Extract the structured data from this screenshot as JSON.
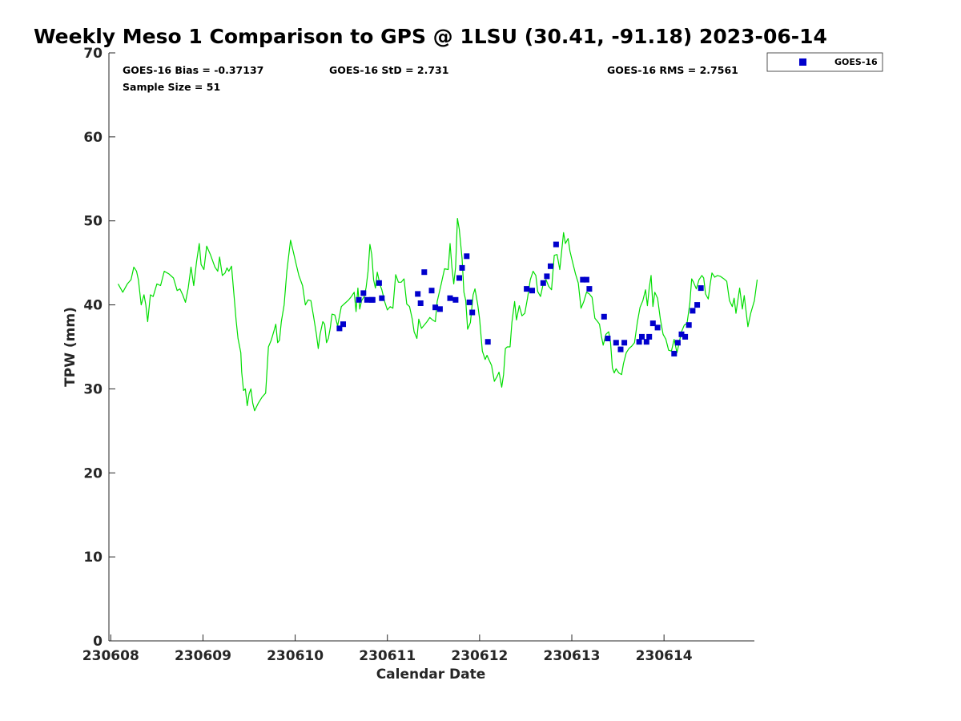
{
  "chart_data": {
    "type": "line",
    "title": "Weekly Meso 1 Comparison to GPS @ 1LSU (30.41, -91.18) 2023-06-14",
    "xlabel": "Calendar Date",
    "ylabel": "TPW (mm)",
    "xlim": [
      "230608",
      "230615"
    ],
    "ylim": [
      0,
      70
    ],
    "x_ticks": [
      "230608",
      "230609",
      "230610",
      "230611",
      "230612",
      "230613",
      "230614"
    ],
    "y_ticks": [
      0,
      10,
      20,
      30,
      40,
      50,
      60,
      70
    ],
    "grid": false,
    "stats": {
      "bias": "GOES-16 Bias = -0.37137",
      "std": "GOES-16 StD = 2.731",
      "rms": "GOES-16 RMS = 2.7561",
      "sample": "Sample Size = 51"
    },
    "legend": {
      "position": "outside-top-right",
      "entries": [
        "GOES-16"
      ]
    },
    "colors": {
      "gps_line": "#00dd00",
      "goes16": "#0000cc"
    },
    "series": [
      {
        "type": "line",
        "color": "#00dd00",
        "points": [
          [
            0.1,
            42.5
          ],
          [
            0.15,
            41.5
          ],
          [
            0.2,
            42.5
          ],
          [
            0.24,
            43
          ],
          [
            0.27,
            44.5
          ],
          [
            0.3,
            44
          ],
          [
            0.32,
            43
          ],
          [
            0.35,
            40
          ],
          [
            0.38,
            41.2
          ],
          [
            0.4,
            40
          ],
          [
            0.42,
            38
          ],
          [
            0.45,
            41.2
          ],
          [
            0.48,
            41
          ],
          [
            0.52,
            42.5
          ],
          [
            0.56,
            42.3
          ],
          [
            0.6,
            44
          ],
          [
            0.65,
            43.7
          ],
          [
            0.7,
            43.2
          ],
          [
            0.74,
            41.7
          ],
          [
            0.77,
            41.9
          ],
          [
            0.8,
            41.2
          ],
          [
            0.83,
            40.3
          ],
          [
            0.86,
            42
          ],
          [
            0.89,
            44.5
          ],
          [
            0.92,
            42.3
          ],
          [
            0.95,
            45.1
          ],
          [
            0.98,
            47.3
          ],
          [
            1.0,
            44.8
          ],
          [
            1.03,
            44.2
          ],
          [
            1.06,
            47
          ],
          [
            1.1,
            46
          ],
          [
            1.15,
            44.5
          ],
          [
            1.18,
            44
          ],
          [
            1.2,
            45.7
          ],
          [
            1.23,
            43.5
          ],
          [
            1.26,
            43.8
          ],
          [
            1.28,
            44.4
          ],
          [
            1.3,
            44
          ],
          [
            1.33,
            44.6
          ],
          [
            1.36,
            40.7
          ],
          [
            1.38,
            38.1
          ],
          [
            1.4,
            36
          ],
          [
            1.43,
            34.3
          ],
          [
            1.44,
            32
          ],
          [
            1.46,
            29.8
          ],
          [
            1.48,
            30
          ],
          [
            1.5,
            28
          ],
          [
            1.52,
            29.4
          ],
          [
            1.54,
            30
          ],
          [
            1.56,
            28.3
          ],
          [
            1.58,
            27.4
          ],
          [
            1.62,
            28.3
          ],
          [
            1.66,
            29
          ],
          [
            1.7,
            29.5
          ],
          [
            1.73,
            35
          ],
          [
            1.76,
            35.8
          ],
          [
            1.79,
            36.9
          ],
          [
            1.81,
            37.7
          ],
          [
            1.83,
            35.5
          ],
          [
            1.85,
            35.8
          ],
          [
            1.87,
            38
          ],
          [
            1.9,
            40
          ],
          [
            1.93,
            44
          ],
          [
            1.97,
            47.7
          ],
          [
            2.0,
            46.3
          ],
          [
            2.03,
            44.9
          ],
          [
            2.06,
            43.5
          ],
          [
            2.1,
            42.3
          ],
          [
            2.13,
            40
          ],
          [
            2.16,
            40.6
          ],
          [
            2.19,
            40.5
          ],
          [
            2.22,
            38.6
          ],
          [
            2.25,
            36.5
          ],
          [
            2.27,
            34.8
          ],
          [
            2.29,
            36.5
          ],
          [
            2.32,
            38
          ],
          [
            2.34,
            37.7
          ],
          [
            2.36,
            35.5
          ],
          [
            2.38,
            36
          ],
          [
            2.4,
            37.2
          ],
          [
            2.42,
            38.9
          ],
          [
            2.45,
            38.8
          ],
          [
            2.48,
            37.5
          ],
          [
            2.52,
            39.8
          ],
          [
            2.56,
            40.2
          ],
          [
            2.6,
            40.6
          ],
          [
            2.63,
            41
          ],
          [
            2.66,
            41.5
          ],
          [
            2.68,
            39.2
          ],
          [
            2.7,
            42
          ],
          [
            2.72,
            39.5
          ],
          [
            2.74,
            40.5
          ],
          [
            2.77,
            41
          ],
          [
            2.79,
            42.1
          ],
          [
            2.81,
            44
          ],
          [
            2.83,
            47.2
          ],
          [
            2.85,
            46
          ],
          [
            2.87,
            43
          ],
          [
            2.89,
            42
          ],
          [
            2.91,
            43.9
          ],
          [
            2.94,
            42.4
          ],
          [
            2.96,
            41.8
          ],
          [
            2.99,
            40.4
          ],
          [
            3.02,
            39.4
          ],
          [
            3.05,
            39.8
          ],
          [
            3.08,
            39.6
          ],
          [
            3.11,
            43.6
          ],
          [
            3.14,
            42.7
          ],
          [
            3.17,
            42.7
          ],
          [
            3.2,
            43.1
          ],
          [
            3.23,
            40.1
          ],
          [
            3.26,
            39.8
          ],
          [
            3.29,
            38.3
          ],
          [
            3.31,
            36.8
          ],
          [
            3.34,
            36
          ],
          [
            3.36,
            38.3
          ],
          [
            3.39,
            37.2
          ],
          [
            3.42,
            37.6
          ],
          [
            3.45,
            38
          ],
          [
            3.48,
            38.5
          ],
          [
            3.51,
            38.2
          ],
          [
            3.54,
            38
          ],
          [
            3.56,
            40.4
          ],
          [
            3.6,
            42.3
          ],
          [
            3.64,
            44.3
          ],
          [
            3.68,
            44.2
          ],
          [
            3.7,
            47.3
          ],
          [
            3.72,
            44.5
          ],
          [
            3.74,
            42.5
          ],
          [
            3.76,
            44.5
          ],
          [
            3.78,
            50.3
          ],
          [
            3.8,
            49
          ],
          [
            3.83,
            45.5
          ],
          [
            3.85,
            41.5
          ],
          [
            3.87,
            40.5
          ],
          [
            3.89,
            37.1
          ],
          [
            3.92,
            37.9
          ],
          [
            3.95,
            41.2
          ],
          [
            3.97,
            41.9
          ],
          [
            4.0,
            40
          ],
          [
            4.02,
            38.3
          ],
          [
            4.05,
            34.5
          ],
          [
            4.08,
            33.5
          ],
          [
            4.1,
            34
          ],
          [
            4.12,
            33.5
          ],
          [
            4.15,
            32.8
          ],
          [
            4.18,
            30.9
          ],
          [
            4.21,
            31.5
          ],
          [
            4.23,
            32
          ],
          [
            4.26,
            30.2
          ],
          [
            4.28,
            31.7
          ],
          [
            4.3,
            34.8
          ],
          [
            4.32,
            35
          ],
          [
            4.35,
            35
          ],
          [
            4.37,
            37.9
          ],
          [
            4.4,
            40.4
          ],
          [
            4.42,
            38.2
          ],
          [
            4.45,
            39.9
          ],
          [
            4.48,
            38.7
          ],
          [
            4.51,
            39
          ],
          [
            4.54,
            40.8
          ],
          [
            4.57,
            43
          ],
          [
            4.6,
            44
          ],
          [
            4.63,
            43.5
          ],
          [
            4.65,
            41.6
          ],
          [
            4.68,
            41
          ],
          [
            4.71,
            42.5
          ],
          [
            4.74,
            43
          ],
          [
            4.77,
            42.2
          ],
          [
            4.8,
            41.8
          ],
          [
            4.83,
            45.9
          ],
          [
            4.86,
            46
          ],
          [
            4.89,
            44.2
          ],
          [
            4.93,
            48.6
          ],
          [
            4.95,
            47.3
          ],
          [
            4.98,
            47.9
          ],
          [
            5.0,
            46.4
          ],
          [
            5.03,
            45
          ],
          [
            5.06,
            43.7
          ],
          [
            5.09,
            42.6
          ],
          [
            5.12,
            39.6
          ],
          [
            5.15,
            40.4
          ],
          [
            5.18,
            41.5
          ],
          [
            5.21,
            41.3
          ],
          [
            5.24,
            40.9
          ],
          [
            5.27,
            38.4
          ],
          [
            5.3,
            38
          ],
          [
            5.32,
            37.7
          ],
          [
            5.34,
            36.3
          ],
          [
            5.36,
            35.2
          ],
          [
            5.39,
            36.5
          ],
          [
            5.42,
            36.8
          ],
          [
            5.44,
            35.5
          ],
          [
            5.46,
            32.5
          ],
          [
            5.48,
            31.9
          ],
          [
            5.5,
            32.4
          ],
          [
            5.53,
            31.9
          ],
          [
            5.56,
            31.7
          ],
          [
            5.58,
            33
          ],
          [
            5.61,
            34.3
          ],
          [
            5.64,
            34.8
          ],
          [
            5.67,
            35.1
          ],
          [
            5.7,
            35.5
          ],
          [
            5.73,
            37.9
          ],
          [
            5.76,
            39.7
          ],
          [
            5.79,
            40.5
          ],
          [
            5.82,
            41.8
          ],
          [
            5.84,
            39.9
          ],
          [
            5.86,
            42
          ],
          [
            5.88,
            43.5
          ],
          [
            5.9,
            39.8
          ],
          [
            5.92,
            41.5
          ],
          [
            5.95,
            40.8
          ],
          [
            5.98,
            38.3
          ],
          [
            6.01,
            36.5
          ],
          [
            6.04,
            35.9
          ],
          [
            6.07,
            34.6
          ],
          [
            6.1,
            34.5
          ],
          [
            6.13,
            35.9
          ],
          [
            6.16,
            34.3
          ],
          [
            6.18,
            35.3
          ],
          [
            6.21,
            36.8
          ],
          [
            6.24,
            37.6
          ],
          [
            6.27,
            37.8
          ],
          [
            6.3,
            40.2
          ],
          [
            6.32,
            43.1
          ],
          [
            6.34,
            42.7
          ],
          [
            6.37,
            41.9
          ],
          [
            6.4,
            43
          ],
          [
            6.43,
            43.5
          ],
          [
            6.45,
            43.2
          ],
          [
            6.47,
            41.3
          ],
          [
            6.5,
            40.7
          ],
          [
            6.52,
            42.4
          ],
          [
            6.54,
            43.8
          ],
          [
            6.57,
            43.3
          ],
          [
            6.6,
            43.5
          ],
          [
            6.63,
            43.4
          ],
          [
            6.67,
            43.1
          ],
          [
            6.7,
            42.8
          ],
          [
            6.73,
            40.5
          ],
          [
            6.76,
            39.8
          ],
          [
            6.78,
            40.8
          ],
          [
            6.8,
            39
          ],
          [
            6.82,
            40.5
          ],
          [
            6.84,
            42
          ],
          [
            6.87,
            39.5
          ],
          [
            6.89,
            41.1
          ],
          [
            6.93,
            37.4
          ],
          [
            6.96,
            39
          ],
          [
            7.0,
            40.5
          ],
          [
            7.03,
            43
          ]
        ]
      },
      {
        "name": "GOES-16",
        "type": "scatter",
        "color": "#0000cc",
        "points": [
          [
            2.5,
            37.2
          ],
          [
            2.54,
            37.7
          ],
          [
            2.71,
            40.6
          ],
          [
            2.76,
            41.4
          ],
          [
            2.8,
            40.6
          ],
          [
            2.85,
            40.6
          ],
          [
            2.86,
            40.6
          ],
          [
            2.93,
            42.6
          ],
          [
            2.96,
            40.8
          ],
          [
            3.35,
            41.3
          ],
          [
            3.38,
            40.2
          ],
          [
            3.42,
            43.9
          ],
          [
            3.5,
            41.7
          ],
          [
            3.54,
            39.7
          ],
          [
            3.59,
            39.5
          ],
          [
            3.7,
            40.8
          ],
          [
            3.76,
            40.6
          ],
          [
            3.8,
            43.2
          ],
          [
            3.83,
            44.4
          ],
          [
            3.88,
            45.8
          ],
          [
            3.91,
            40.3
          ],
          [
            3.94,
            39.1
          ],
          [
            4.11,
            35.6
          ],
          [
            4.53,
            41.9
          ],
          [
            4.59,
            41.7
          ],
          [
            4.71,
            42.6
          ],
          [
            4.75,
            43.4
          ],
          [
            4.79,
            44.6
          ],
          [
            4.85,
            47.2
          ],
          [
            5.14,
            43
          ],
          [
            5.18,
            43
          ],
          [
            5.21,
            41.9
          ],
          [
            5.37,
            38.6
          ],
          [
            5.41,
            36
          ],
          [
            5.5,
            35.5
          ],
          [
            5.55,
            34.7
          ],
          [
            5.59,
            35.5
          ],
          [
            5.75,
            35.6
          ],
          [
            5.78,
            36.2
          ],
          [
            5.83,
            35.6
          ],
          [
            5.86,
            36.2
          ],
          [
            5.9,
            37.8
          ],
          [
            5.95,
            37.3
          ],
          [
            6.13,
            34.2
          ],
          [
            6.17,
            35.5
          ],
          [
            6.21,
            36.5
          ],
          [
            6.25,
            36.2
          ],
          [
            6.29,
            37.6
          ],
          [
            6.33,
            39.3
          ],
          [
            6.38,
            40
          ],
          [
            6.42,
            42
          ]
        ]
      }
    ]
  }
}
